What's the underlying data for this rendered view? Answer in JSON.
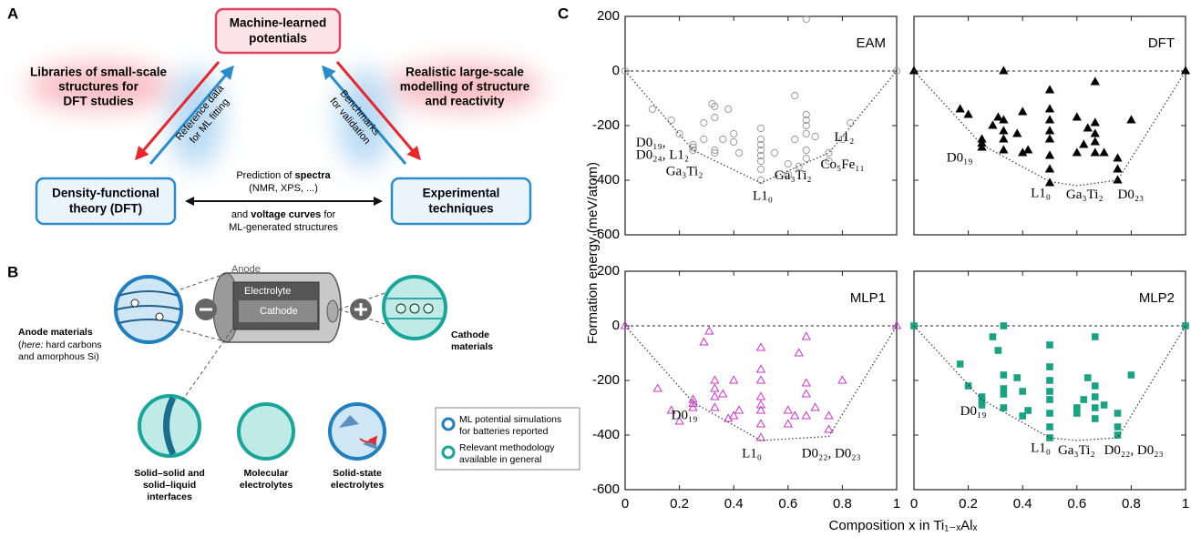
{
  "panel_labels": [
    "A",
    "B",
    "C"
  ],
  "diagram": {
    "top_node": [
      "Machine-learned",
      "potentials"
    ],
    "left_node": [
      "Density-functional",
      "theory (DFT)"
    ],
    "right_node": [
      "Experimental",
      "techniques"
    ],
    "left_cloud": [
      "Libraries of small-scale",
      "structures for",
      "DFT studies"
    ],
    "right_cloud": [
      "Realistic large-scale",
      "modelling of structure",
      "and reactivity"
    ],
    "left_edge": [
      "Reference data",
      "for ML fitting"
    ],
    "right_edge": [
      "Benchmarks",
      "for validation"
    ],
    "bottom_edge": {
      "line1": [
        "Prediction of ",
        "spectra"
      ],
      "line2": "(NMR, XPS, ...)",
      "line3": [
        "and ",
        "voltage curves",
        " for"
      ],
      "line4": "ML-generated structures"
    }
  },
  "battery": {
    "anode": "Anode",
    "electrolyte": "Electrolyte",
    "cathode": "Cathode",
    "anode_materials": {
      "title": "Anode materials",
      "line2": [
        "(",
        "here:",
        " hard carbons"
      ],
      "line3": "and amorphous Si)"
    },
    "cathode_materials": [
      "Cathode",
      "materials"
    ],
    "interfaces": [
      "Solid–solid and",
      "solid–liquid",
      "interfaces"
    ],
    "molecular": [
      "Molecular",
      "electrolytes"
    ],
    "solid_state": [
      "Solid-state",
      "electrolytes"
    ],
    "legend": [
      [
        "ML potential simulations",
        "for batteries reported"
      ],
      [
        "Relevant methodology",
        "available in general"
      ]
    ]
  },
  "panel_c": {
    "ylabel": "Formation energy (meV/atom)",
    "xlabel": "Composition x in Ti₁₋ₓAlₓ"
  },
  "chart_data": [
    {
      "type": "scatter",
      "title": "EAM",
      "xlim": [
        0,
        1
      ],
      "ylim": [
        -600,
        200
      ],
      "xticks": [
        0,
        0.2,
        0.4,
        0.6,
        0.8,
        1
      ],
      "yticks": [
        -600,
        -400,
        -200,
        0,
        200
      ],
      "show_xtick_labels": false,
      "show_ytick_labels": true,
      "reference_line": 0,
      "series": [
        {
          "color": "#9a9a9a",
          "marker": "open-circle",
          "x": [
            0,
            1,
            0.667,
            0.1,
            0.17,
            0.2,
            0.25,
            0.25,
            0.25,
            0.29,
            0.29,
            0.32,
            0.33,
            0.33,
            0.33,
            0.33,
            0.36,
            0.38,
            0.4,
            0.4,
            0.42,
            0.5,
            0.5,
            0.5,
            0.5,
            0.5,
            0.5,
            0.5,
            0.5,
            0.55,
            0.6,
            0.6,
            0.625,
            0.625,
            0.64,
            0.667,
            0.667,
            0.667,
            0.667,
            0.667,
            0.667,
            0.7,
            0.75,
            0.75,
            0.8,
            0.83
          ],
          "values": [
            0,
            0,
            190,
            -140,
            -180,
            -230,
            -270,
            -280,
            -290,
            -190,
            -250,
            -120,
            -130,
            -170,
            -290,
            -300,
            -250,
            -140,
            -230,
            -260,
            -300,
            -210,
            -250,
            -270,
            -290,
            -310,
            -330,
            -360,
            -400,
            -300,
            -340,
            -380,
            -90,
            -250,
            -350,
            -160,
            -180,
            -200,
            -230,
            -290,
            -320,
            -240,
            -300,
            -330,
            -250,
            -190
          ]
        },
        {
          "color": "#333333",
          "marker": "dotted-line",
          "x": [
            0,
            0.25,
            0.5,
            0.75,
            1
          ],
          "values": [
            0,
            -290,
            -410,
            -300,
            0
          ]
        }
      ],
      "annotations": [
        "D0₁₉,",
        "D0₂₄, L1₂",
        "Ga₃Ti₂",
        "L1₀",
        "Ga₃Ti₂",
        "L1₂",
        "Co₅Fe₁₁"
      ]
    },
    {
      "type": "scatter",
      "title": "DFT",
      "xlim": [
        0,
        1
      ],
      "ylim": [
        -600,
        200
      ],
      "xticks": [
        0,
        0.2,
        0.4,
        0.6,
        0.8,
        1
      ],
      "yticks": [
        -600,
        -400,
        -200,
        0,
        200
      ],
      "show_xtick_labels": false,
      "show_ytick_labels": false,
      "reference_line": 0,
      "series": [
        {
          "color": "#000000",
          "marker": "filled-triangle",
          "x": [
            0,
            1,
            0.17,
            0.2,
            0.25,
            0.25,
            0.25,
            0.29,
            0.31,
            0.33,
            0.33,
            0.33,
            0.33,
            0.33,
            0.38,
            0.4,
            0.4,
            0.42,
            0.5,
            0.5,
            0.5,
            0.5,
            0.5,
            0.5,
            0.5,
            0.5,
            0.6,
            0.6,
            0.625,
            0.64,
            0.667,
            0.667,
            0.667,
            0.667,
            0.667,
            0.7,
            0.75,
            0.75,
            0.75,
            0.8
          ],
          "values": [
            0,
            0,
            -140,
            -160,
            -250,
            -265,
            -280,
            -200,
            -170,
            0,
            -180,
            -220,
            -250,
            -290,
            -230,
            -150,
            -300,
            -290,
            -70,
            -140,
            -180,
            -220,
            -250,
            -310,
            -360,
            -410,
            -170,
            -300,
            -270,
            -210,
            -40,
            -190,
            -230,
            -260,
            -300,
            -300,
            -320,
            -360,
            -400,
            -180
          ]
        },
        {
          "color": "#333333",
          "marker": "dotted-line",
          "x": [
            0,
            0.25,
            0.5,
            0.6,
            0.75,
            1
          ],
          "values": [
            0,
            -270,
            -405,
            -420,
            -400,
            0
          ]
        }
      ],
      "annotations": [
        "D0₁₉",
        "L1₀",
        "Ga₃Ti₂",
        "D0₂₃"
      ]
    },
    {
      "type": "scatter",
      "title": "MLP1",
      "xlim": [
        0,
        1
      ],
      "ylim": [
        -600,
        200
      ],
      "xticks": [
        0,
        0.2,
        0.4,
        0.6,
        0.8,
        1
      ],
      "yticks": [
        -600,
        -400,
        -200,
        0,
        200
      ],
      "show_xtick_labels": true,
      "show_ytick_labels": true,
      "reference_line": 0,
      "series": [
        {
          "color": "#cc33cc",
          "marker": "open-triangle",
          "x": [
            0,
            1,
            0.12,
            0.17,
            0.2,
            0.25,
            0.25,
            0.25,
            0.29,
            0.31,
            0.33,
            0.33,
            0.33,
            0.33,
            0.36,
            0.38,
            0.4,
            0.4,
            0.42,
            0.5,
            0.5,
            0.5,
            0.5,
            0.5,
            0.5,
            0.5,
            0.5,
            0.6,
            0.6,
            0.625,
            0.64,
            0.667,
            0.667,
            0.667,
            0.667,
            0.7,
            0.75,
            0.75,
            0.8
          ],
          "values": [
            0,
            0,
            -230,
            -310,
            -350,
            -270,
            -285,
            -300,
            -60,
            -20,
            -200,
            -230,
            -260,
            -300,
            -250,
            -340,
            -200,
            -330,
            -310,
            -80,
            -160,
            -200,
            -260,
            -290,
            -310,
            -360,
            -410,
            -310,
            -360,
            -330,
            -100,
            -40,
            -210,
            -250,
            -330,
            -300,
            -330,
            -380,
            -200
          ]
        },
        {
          "color": "#333333",
          "marker": "dotted-line",
          "x": [
            0,
            0.25,
            0.5,
            0.75,
            1
          ],
          "values": [
            0,
            -280,
            -420,
            -405,
            0
          ]
        }
      ],
      "annotations": [
        "D0₁₉",
        "L1₀",
        "D0₂₂, D0₂₃"
      ]
    },
    {
      "type": "scatter",
      "title": "MLP2",
      "xlim": [
        0,
        1
      ],
      "ylim": [
        -600,
        200
      ],
      "xticks": [
        0,
        0.2,
        0.4,
        0.6,
        0.8,
        1
      ],
      "yticks": [
        -600,
        -400,
        -200,
        0,
        200
      ],
      "show_xtick_labels": true,
      "show_ytick_labels": false,
      "reference_line": 0,
      "series": [
        {
          "color": "#1aa383",
          "marker": "filled-square",
          "x": [
            0,
            1,
            0.17,
            0.2,
            0.25,
            0.25,
            0.25,
            0.29,
            0.31,
            0.33,
            0.33,
            0.33,
            0.33,
            0.33,
            0.38,
            0.4,
            0.4,
            0.42,
            0.5,
            0.5,
            0.5,
            0.5,
            0.5,
            0.5,
            0.5,
            0.5,
            0.6,
            0.6,
            0.625,
            0.64,
            0.667,
            0.667,
            0.667,
            0.667,
            0.667,
            0.7,
            0.75,
            0.75,
            0.75,
            0.8
          ],
          "values": [
            0,
            0,
            -140,
            -220,
            -260,
            -275,
            -290,
            -40,
            -90,
            0,
            -180,
            -230,
            -250,
            -300,
            -190,
            -240,
            -330,
            -310,
            -70,
            -150,
            -200,
            -240,
            -270,
            -320,
            -370,
            -410,
            -300,
            -320,
            -270,
            -190,
            -40,
            -220,
            -260,
            -300,
            -340,
            -290,
            -320,
            -370,
            -400,
            -180
          ]
        },
        {
          "color": "#333333",
          "marker": "dotted-line",
          "x": [
            0,
            0.25,
            0.5,
            0.6,
            0.75,
            1
          ],
          "values": [
            0,
            -270,
            -410,
            -420,
            -410,
            0
          ]
        }
      ],
      "annotations": [
        "D0₁₉",
        "L1₀",
        "Ga₃Ti₂",
        "D0₂₂, D0₂₃"
      ]
    }
  ]
}
